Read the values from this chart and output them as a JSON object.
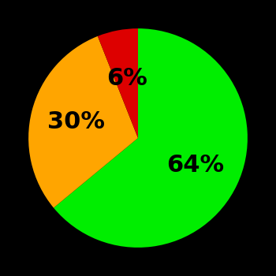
{
  "slices": [
    64,
    30,
    6
  ],
  "colors": [
    "#00ee00",
    "#ffa500",
    "#dd0000"
  ],
  "labels": [
    "64%",
    "30%",
    "6%"
  ],
  "label_radii": [
    0.58,
    0.58,
    0.55
  ],
  "background_color": "#000000",
  "text_color": "#000000",
  "font_size": 22,
  "font_weight": "bold",
  "startangle": 90,
  "counterclock": false,
  "figsize": [
    3.5,
    3.5
  ],
  "dpi": 100
}
